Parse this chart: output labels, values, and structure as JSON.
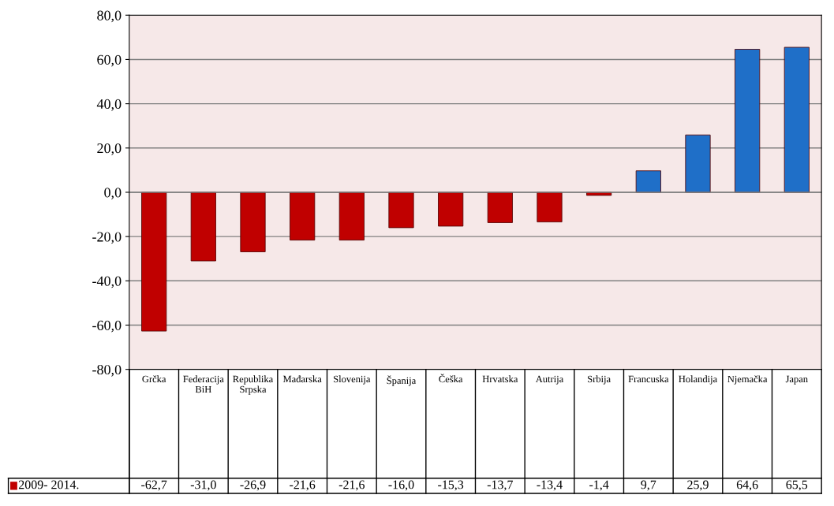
{
  "chart_data": {
    "type": "bar",
    "categories": [
      "Grčka",
      "Federacija BiH",
      "Republika Srpska",
      "Mađarska",
      "Slovenija",
      "Španija",
      "Češka",
      "Hrvatska",
      "Autrija",
      "Srbija",
      "Francuska",
      "Holandija",
      "Njemačka",
      "Japan"
    ],
    "series": [
      {
        "name": "2009- 2014.",
        "color": "#c00000",
        "colors": [
          "#c00000",
          "#c00000",
          "#c00000",
          "#c00000",
          "#c00000",
          "#c00000",
          "#c00000",
          "#c00000",
          "#c00000",
          "#c00000",
          "#1f6fc8",
          "#1f6fc8",
          "#1f6fc8",
          "#1f6fc8"
        ],
        "values": [
          -62.7,
          -31.0,
          -26.9,
          -21.6,
          -21.6,
          -16.0,
          -15.3,
          -13.7,
          -13.4,
          -1.4,
          9.7,
          25.9,
          64.6,
          65.5
        ],
        "value_labels": [
          "-62,7",
          "-31,0",
          "-26,9",
          "-21,6",
          "-21,6",
          "-16,0",
          "-15,3",
          "-13,7",
          "-13,4",
          "-1,4",
          "9,7",
          "25,9",
          "64,6",
          "65,5"
        ]
      }
    ],
    "ylim": [
      -80,
      80
    ],
    "yticks": [
      {
        "value": -80,
        "label": "-80,0"
      },
      {
        "value": -60,
        "label": "-60,0"
      },
      {
        "value": -40,
        "label": "-40,0"
      },
      {
        "value": -20,
        "label": "-20,0"
      },
      {
        "value": 0,
        "label": "0,0"
      },
      {
        "value": 20,
        "label": "20,0"
      },
      {
        "value": 40,
        "label": "40,0"
      },
      {
        "value": 60,
        "label": "60,0"
      },
      {
        "value": 80,
        "label": "80,0"
      }
    ],
    "grid": "y",
    "legend": "bottom left"
  }
}
